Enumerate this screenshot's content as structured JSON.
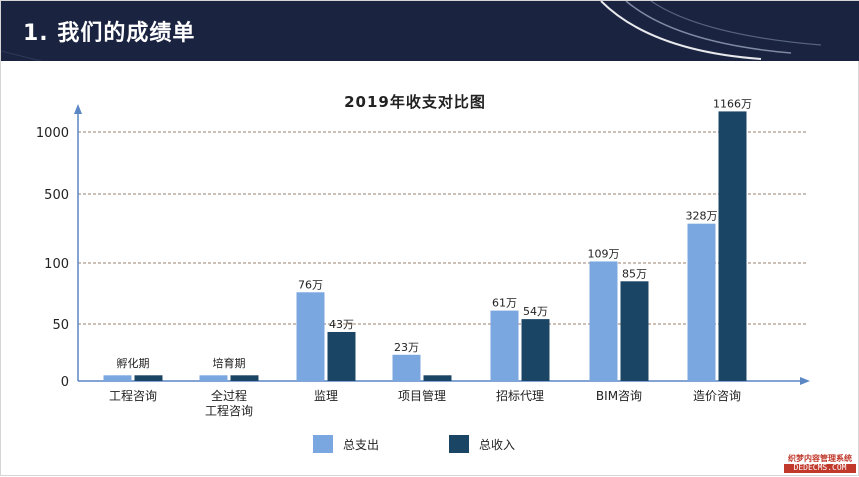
{
  "header": {
    "title": "1. 我们的成绩单"
  },
  "colors": {
    "header_bg": "#1a2340",
    "expense": "#7ba7e1",
    "income": "#1b4565",
    "grid": "#9a7f6b",
    "axis": "#5b87c5"
  },
  "chart_data": {
    "type": "bar",
    "title": "2019年收支对比图",
    "xlabel": "",
    "ylabel": "",
    "y_ticks": [
      "0",
      "50",
      "100",
      "500",
      "1000"
    ],
    "y_scale": "piecewise (broken axis)",
    "grid": true,
    "legend_position": "bottom-center",
    "categories": [
      {
        "lines": [
          "工程咨询"
        ],
        "overlay": "孵化期"
      },
      {
        "lines": [
          "全过程",
          "工程咨询"
        ],
        "overlay": "培育期"
      },
      {
        "lines": [
          "监理"
        ],
        "overlay": ""
      },
      {
        "lines": [
          "项目管理"
        ],
        "overlay": ""
      },
      {
        "lines": [
          "招标代理"
        ],
        "overlay": ""
      },
      {
        "lines": [
          "BIM咨询"
        ],
        "overlay": ""
      },
      {
        "lines": [
          "造价咨询"
        ],
        "overlay": ""
      }
    ],
    "series": [
      {
        "name": "总支出",
        "color": "#7ba7e1",
        "values": [
          5,
          5,
          76,
          23,
          61,
          109,
          328
        ],
        "labels": [
          "",
          "",
          "76万",
          "23万",
          "61万",
          "109万",
          "328万"
        ]
      },
      {
        "name": "总收入",
        "color": "#1b4565",
        "values": [
          5,
          5,
          43,
          5,
          54,
          85,
          1166
        ],
        "labels": [
          "",
          "",
          "43万",
          "",
          "54万",
          "85万",
          "1166万"
        ]
      }
    ]
  },
  "watermark": {
    "cn": "织梦内容管理系统",
    "en": "DEDECMS.COM"
  }
}
